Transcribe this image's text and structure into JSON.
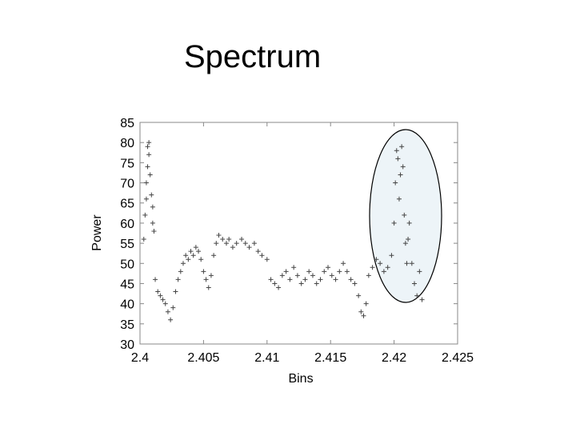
{
  "chart_data": {
    "type": "scatter",
    "title": "Spectrum",
    "x_label": "Bins",
    "y_label": "Power",
    "xlim": [
      2.4,
      2.425
    ],
    "xticks": [
      2.4,
      2.405,
      2.41,
      2.415,
      2.42,
      2.425
    ],
    "ylim": [
      30,
      85
    ],
    "yticks": [
      30,
      35,
      40,
      45,
      50,
      55,
      60,
      65,
      70,
      75,
      80,
      85
    ],
    "color": "#444444",
    "x": [
      2.4003,
      2.4004,
      2.4005,
      2.4005,
      2.4006,
      2.4006,
      2.4007,
      2.4007,
      2.4008,
      2.4009,
      2.401,
      2.401,
      2.4011,
      2.4012,
      2.4014,
      2.4016,
      2.4018,
      2.402,
      2.4022,
      2.4024,
      2.4026,
      2.4028,
      2.403,
      2.4032,
      2.4034,
      2.4036,
      2.4038,
      2.404,
      2.4042,
      2.4044,
      2.4046,
      2.4048,
      2.405,
      2.4052,
      2.4054,
      2.4056,
      2.4058,
      2.406,
      2.4062,
      2.4065,
      2.4068,
      2.407,
      2.4073,
      2.4076,
      2.408,
      2.4083,
      2.4086,
      2.409,
      2.4093,
      2.4096,
      2.41,
      2.4103,
      2.4106,
      2.4109,
      2.4112,
      2.4115,
      2.4118,
      2.4121,
      2.4124,
      2.4127,
      2.413,
      2.4133,
      2.4136,
      2.4139,
      2.4142,
      2.4145,
      2.4148,
      2.4151,
      2.4154,
      2.4157,
      2.416,
      2.4163,
      2.4166,
      2.4169,
      2.4172,
      2.4174,
      2.4176,
      2.4178,
      2.418,
      2.4183,
      2.4186,
      2.4189,
      2.4192,
      2.4195,
      2.4198,
      2.42,
      2.4201,
      2.4202,
      2.4203,
      2.4204,
      2.4205,
      2.4206,
      2.4207,
      2.4208,
      2.4209,
      2.421,
      2.4211,
      2.4212,
      2.4214,
      2.4216,
      2.4218,
      2.422,
      2.4222
    ],
    "values": [
      56,
      62,
      66,
      70,
      74,
      79,
      80,
      77,
      72,
      67,
      64,
      60,
      58,
      46,
      43,
      42,
      41,
      40,
      38,
      36,
      39,
      43,
      46,
      48,
      50,
      52,
      51,
      53,
      52,
      54,
      53,
      51,
      48,
      46,
      44,
      47,
      52,
      55,
      57,
      56,
      55,
      56,
      54,
      55,
      56,
      55,
      54,
      55,
      53,
      52,
      51,
      46,
      45,
      44,
      47,
      48,
      46,
      49,
      47,
      45,
      46,
      48,
      47,
      45,
      46,
      48,
      49,
      47,
      46,
      48,
      50,
      48,
      46,
      45,
      42,
      38,
      37,
      40,
      47,
      49,
      51,
      50,
      48,
      49,
      52,
      60,
      70,
      78,
      76,
      66,
      72,
      79,
      74,
      62,
      55,
      50,
      56,
      60,
      50,
      45,
      42,
      48,
      41
    ]
  }
}
